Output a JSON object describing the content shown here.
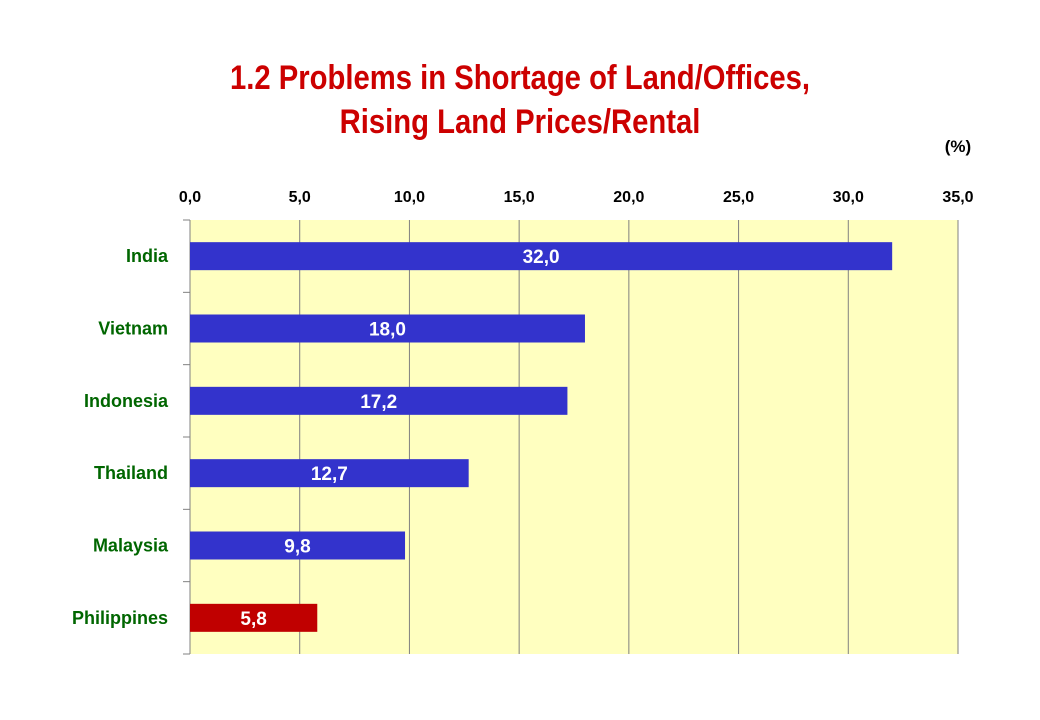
{
  "chart_data": {
    "type": "bar",
    "orientation": "horizontal",
    "title_lines": [
      "1.2 Problems in Shortage of Land/Offices,",
      "Rising Land Prices/Rental"
    ],
    "unit_label": "(%)",
    "categories": [
      "India",
      "Vietnam",
      "Indonesia",
      "Thailand",
      "Malaysia",
      "Philippines"
    ],
    "values": [
      32.0,
      18.0,
      17.2,
      12.7,
      9.8,
      5.8
    ],
    "value_labels": [
      "32,0",
      "18,0",
      "17,2",
      "12,7",
      "9,8",
      "5,8"
    ],
    "xlim": [
      0,
      35
    ],
    "x_ticks": [
      0,
      5,
      10,
      15,
      20,
      25,
      30,
      35
    ],
    "x_tick_labels": [
      "0,0",
      "5,0",
      "10,0",
      "15,0",
      "20,0",
      "25,0",
      "30,0",
      "35,0"
    ],
    "x_axis_position": "top",
    "grid": true,
    "legend": "none",
    "colors": {
      "title": "#cc0000",
      "plot_background": "#ffffc0",
      "bar_default": "#3333cc",
      "bar_highlight": "#c00000",
      "category_label": "#006600",
      "value_label": "#ffffff",
      "grid": "#808080"
    },
    "highlight_categories": [
      "Philippines"
    ]
  }
}
